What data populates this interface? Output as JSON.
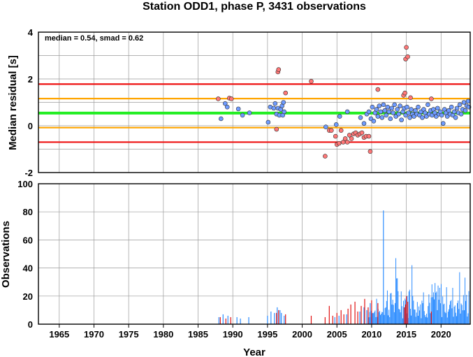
{
  "title": "Station ODD1, phase P, 3431 observations",
  "chart_data": [
    {
      "type": "scatter",
      "name": "residual-panel",
      "ylabel": "Median residual [s]",
      "xlim": [
        1962,
        2024.2
      ],
      "ylim": [
        -2,
        4
      ],
      "yticks": [
        -2,
        0,
        2,
        4
      ],
      "grid": true,
      "annotation": "median = 0.54, smad = 0.62",
      "reference_lines": [
        {
          "y": 1.78,
          "color": "#ee1111"
        },
        {
          "y": 1.16,
          "color": "#ffa500"
        },
        {
          "y": 0.54,
          "color": "#22ee22"
        },
        {
          "y": -0.08,
          "color": "#ffa500"
        },
        {
          "y": -0.7,
          "color": "#ee1111"
        }
      ],
      "series": [
        {
          "color": "#6e9bff",
          "points": [
            [
              1988.3,
              0.3
            ],
            [
              1988.9,
              0.95
            ],
            [
              1989.2,
              0.8
            ],
            [
              1990.8,
              0.72
            ],
            [
              1991.4,
              0.45
            ],
            [
              1992.4,
              0.55
            ],
            [
              1995.1,
              0.15
            ],
            [
              1995.4,
              0.8
            ],
            [
              1995.9,
              0.75
            ],
            [
              1996.1,
              0.95
            ],
            [
              1996.3,
              0.5
            ],
            [
              1996.5,
              0.75
            ],
            [
              1996.7,
              0.45
            ],
            [
              1996.9,
              0.7
            ],
            [
              1997.1,
              0.85
            ],
            [
              1997.2,
              0.45
            ],
            [
              1997.3,
              1.0
            ],
            [
              1997.4,
              0.6
            ],
            [
              2003.4,
              -0.05
            ],
            [
              2004.9,
              0.05
            ],
            [
              2005.4,
              0.4
            ],
            [
              2006.5,
              0.6
            ],
            [
              2008.4,
              0.35
            ],
            [
              2008.9,
              0.1
            ],
            [
              2009.3,
              0.5
            ],
            [
              2009.6,
              0.6
            ],
            [
              2009.9,
              0.3
            ],
            [
              2010.1,
              0.8
            ],
            [
              2010.3,
              0.2
            ],
            [
              2010.5,
              0.55
            ],
            [
              2010.7,
              0.7
            ],
            [
              2010.9,
              0.4
            ],
            [
              2011.1,
              0.85
            ],
            [
              2011.3,
              0.6
            ],
            [
              2011.5,
              0.35
            ],
            [
              2011.7,
              0.9
            ],
            [
              2011.9,
              0.65
            ],
            [
              2012.1,
              0.45
            ],
            [
              2012.3,
              0.8
            ],
            [
              2012.5,
              0.6
            ],
            [
              2012.7,
              0.3
            ],
            [
              2012.9,
              0.75
            ],
            [
              2013.1,
              0.55
            ],
            [
              2013.3,
              0.9
            ],
            [
              2013.5,
              0.4
            ],
            [
              2013.7,
              0.7
            ],
            [
              2013.9,
              0.5
            ],
            [
              2014.1,
              0.85
            ],
            [
              2014.3,
              0.25
            ],
            [
              2014.5,
              0.6
            ],
            [
              2014.7,
              0.75
            ],
            [
              2014.9,
              0.45
            ],
            [
              2015.1,
              0.8
            ],
            [
              2015.3,
              0.55
            ],
            [
              2015.5,
              0.35
            ],
            [
              2015.7,
              0.7
            ],
            [
              2015.9,
              0.5
            ],
            [
              2016.1,
              0.4
            ],
            [
              2016.3,
              0.65
            ],
            [
              2016.5,
              0.5
            ],
            [
              2016.7,
              0.8
            ],
            [
              2016.9,
              0.45
            ],
            [
              2017.1,
              0.6
            ],
            [
              2017.3,
              0.35
            ],
            [
              2017.5,
              0.7
            ],
            [
              2017.7,
              0.55
            ],
            [
              2017.9,
              0.4
            ],
            [
              2018.1,
              0.9
            ],
            [
              2018.3,
              0.5
            ],
            [
              2018.5,
              0.65
            ],
            [
              2018.7,
              0.45
            ],
            [
              2018.9,
              0.7
            ],
            [
              2019.1,
              0.55
            ],
            [
              2019.3,
              0.4
            ],
            [
              2019.5,
              0.75
            ],
            [
              2019.7,
              0.5
            ],
            [
              2019.9,
              0.6
            ],
            [
              2020.1,
              0.45
            ],
            [
              2020.3,
              0.1
            ],
            [
              2020.5,
              0.7
            ],
            [
              2020.7,
              0.55
            ],
            [
              2020.9,
              0.4
            ],
            [
              2021.1,
              0.65
            ],
            [
              2021.3,
              0.5
            ],
            [
              2021.5,
              0.8
            ],
            [
              2021.7,
              0.45
            ],
            [
              2021.9,
              0.6
            ],
            [
              2022.1,
              0.35
            ],
            [
              2022.3,
              0.75
            ],
            [
              2022.5,
              0.55
            ],
            [
              2022.7,
              0.9
            ],
            [
              2022.9,
              0.5
            ],
            [
              2023.1,
              0.7
            ],
            [
              2023.3,
              1.0
            ],
            [
              2023.5,
              0.65
            ],
            [
              2023.7,
              0.85
            ],
            [
              2023.9,
              1.05
            ],
            [
              2024.0,
              0.8
            ]
          ]
        },
        {
          "color": "#ff7777",
          "points": [
            [
              1987.9,
              1.15
            ],
            [
              1989.5,
              1.18
            ],
            [
              1989.8,
              1.15
            ],
            [
              1996.3,
              -0.15
            ],
            [
              1996.5,
              2.3
            ],
            [
              1996.6,
              2.4
            ],
            [
              1997.6,
              1.4
            ],
            [
              2001.3,
              1.9
            ],
            [
              2003.3,
              -1.3
            ],
            [
              2003.9,
              -0.2
            ],
            [
              2004.2,
              -0.2
            ],
            [
              2004.8,
              -0.45
            ],
            [
              2005.0,
              -0.8
            ],
            [
              2005.3,
              -0.75
            ],
            [
              2005.6,
              -0.2
            ],
            [
              2005.9,
              -0.7
            ],
            [
              2006.2,
              -0.55
            ],
            [
              2006.5,
              -0.7
            ],
            [
              2006.8,
              -0.4
            ],
            [
              2007.1,
              -0.55
            ],
            [
              2007.4,
              -0.35
            ],
            [
              2007.7,
              -0.3
            ],
            [
              2008.0,
              -0.4
            ],
            [
              2008.3,
              -0.35
            ],
            [
              2008.6,
              -0.3
            ],
            [
              2008.9,
              -0.5
            ],
            [
              2009.2,
              -0.45
            ],
            [
              2009.6,
              -0.45
            ],
            [
              2009.8,
              -1.1
            ],
            [
              2010.9,
              1.55
            ],
            [
              2014.6,
              1.3
            ],
            [
              2014.8,
              1.4
            ],
            [
              2014.9,
              2.85
            ],
            [
              2015.0,
              3.35
            ],
            [
              2015.2,
              2.95
            ],
            [
              2015.6,
              1.2
            ],
            [
              2018.6,
              1.15
            ]
          ]
        }
      ]
    },
    {
      "type": "bar",
      "name": "observations-panel",
      "ylabel": "Observations",
      "xlabel": "Year",
      "xlim": [
        1962,
        2024.2
      ],
      "ylim": [
        0,
        100
      ],
      "yticks": [
        0,
        20,
        40,
        60,
        80,
        100
      ],
      "xticks": [
        1965,
        1970,
        1975,
        1980,
        1985,
        1990,
        1995,
        2000,
        2005,
        2010,
        2015,
        2020
      ],
      "grid": true,
      "series": [
        {
          "color": "#2b8cff",
          "x": [
            1988.0,
            1988.6,
            1989.3,
            1990.6,
            1991.1,
            1992.3,
            1995.0,
            1995.5,
            1996.0,
            1996.4,
            1996.8,
            1997.0,
            1997.4,
            2004.7,
            2005.3,
            2006.4,
            2008.3,
            2008.9,
            2009.3,
            2009.8,
            2011.7
          ],
          "values": [
            5,
            7,
            6,
            5,
            4,
            5,
            6,
            9,
            8,
            12,
            10,
            8,
            6,
            5,
            6,
            7,
            9,
            12,
            10,
            15,
            81
          ]
        },
        {
          "color": "#e01010",
          "x": [
            1988.2,
            1989.0,
            1989.7,
            1996.3,
            1996.6,
            1997.6,
            2001.3,
            2003.3,
            2003.9,
            2004.4,
            2005.0,
            2005.6,
            2006.0,
            2006.6,
            2007.0,
            2007.6,
            2008.0,
            2008.5,
            2009.0,
            2009.5,
            2010.0,
            2010.9,
            2014.7,
            2014.9,
            2015.0,
            2015.2,
            2018.6
          ],
          "values": [
            5,
            4,
            5,
            8,
            10,
            7,
            6,
            5,
            13,
            6,
            8,
            10,
            7,
            11,
            14,
            16,
            9,
            13,
            18,
            12,
            17,
            15,
            12,
            14,
            20,
            16,
            9
          ]
        }
      ],
      "dense": {
        "from": 2009.5,
        "to": 2024.1,
        "min": 4,
        "max": 38,
        "color": "#2b8cff",
        "peaks": [
          [
            2013.5,
            47
          ],
          [
            2015.8,
            42
          ],
          [
            2022.7,
            37
          ]
        ]
      }
    }
  ],
  "colors": {
    "frame": "#000000",
    "grid": "#9a9a9a"
  }
}
